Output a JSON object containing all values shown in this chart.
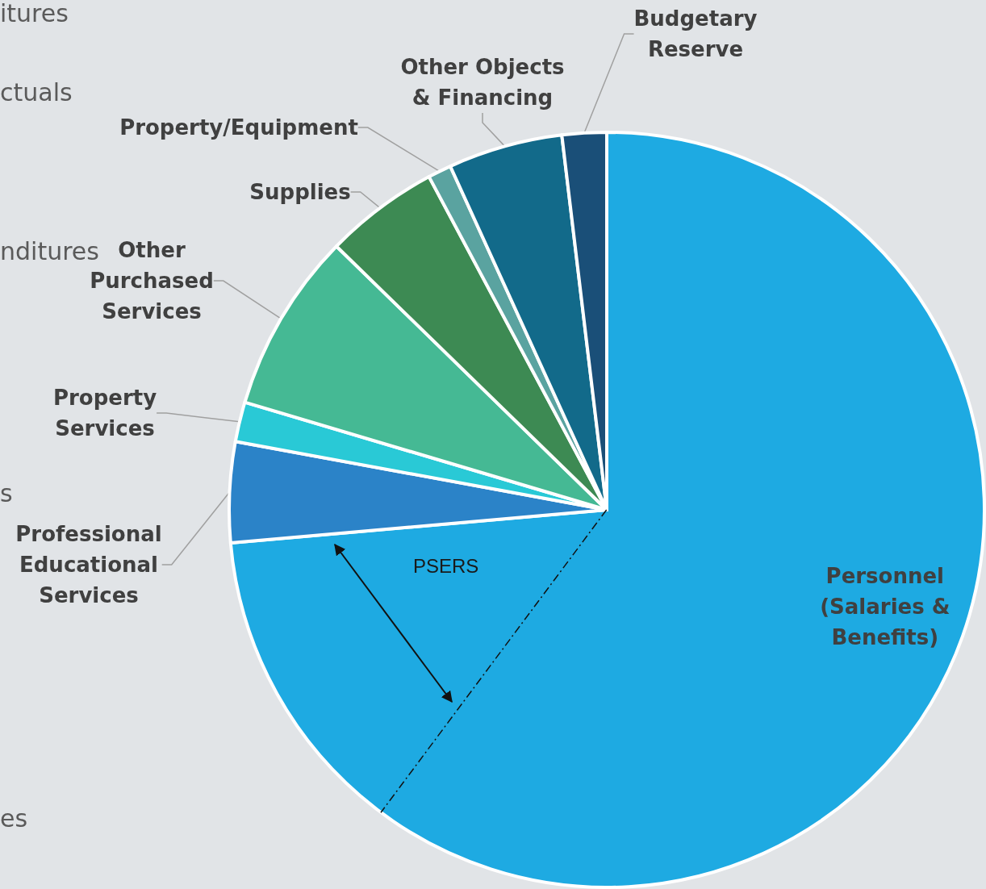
{
  "chart_data": {
    "type": "pie",
    "categories": [
      "Personnel\n(Salaries &\nBenefits)",
      "Professional\nEducational\nServices",
      "Property\nServices",
      "Other\nPurchased\nServices",
      "Supplies",
      "Property/Equipment",
      "Other Objects\n& Financing",
      "Budgetary\nReserve"
    ],
    "values": [
      73.6,
      4.3,
      1.7,
      7.7,
      4.9,
      1.0,
      4.9,
      1.9
    ],
    "colors": [
      "#1eaae2",
      "#2b83c8",
      "#29c9d6",
      "#45b994",
      "#3d8a53",
      "#5aa3a0",
      "#126a8a",
      "#1a4f78"
    ],
    "legend": false,
    "needle": "Personnel\n(Salaries &\nBenefits)",
    "annotations": [
      "itures",
      "ctuals",
      "nditures",
      "s",
      "es",
      "PSERS"
    ]
  }
}
